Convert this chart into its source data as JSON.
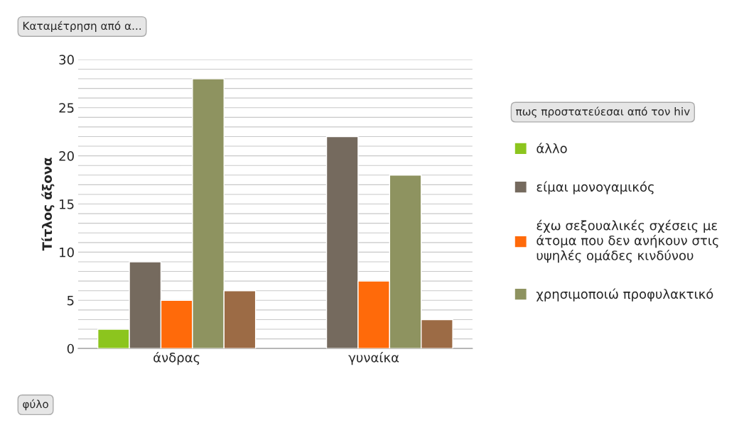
{
  "chart_data": {
    "type": "bar",
    "ylabel": "Τίτλος άξονα",
    "legend_title": "πως προστατεύεσαι από τον hiv",
    "annotations": [
      "Καταμέτρηση από α...",
      "φύλο"
    ],
    "categories": [
      "άνδρας",
      "γυναίκα"
    ],
    "series": [
      {
        "name": "άλλο",
        "color": "#8cc51e",
        "values": [
          2,
          null
        ]
      },
      {
        "name": "είμαι μονογαμικός",
        "color": "#756a5e",
        "values": [
          9,
          22
        ]
      },
      {
        "name": "έχω σεξουαλικές σχέσεις με\nάτομα που δεν ανήκουν στις\nυψηλές ομάδες κινδύνου",
        "color": "#ff6a0a",
        "values": [
          5,
          7
        ]
      },
      {
        "name": "χρησιμοποιώ προφυλακτικό",
        "color": "#8e9360",
        "values": [
          28,
          18
        ]
      },
      {
        "color": "#9c6b45",
        "values": [
          6,
          3
        ]
      }
    ],
    "ylim": [
      0,
      30
    ],
    "yticks": [
      0,
      {
        "value": 1,
        "label": null
      },
      {
        "value": 2,
        "label": null
      },
      {
        "value": 3,
        "label": null
      },
      {
        "value": 4,
        "label": null
      },
      5,
      {
        "value": 6,
        "label": null
      },
      {
        "value": 7,
        "label": null
      },
      {
        "value": 8,
        "label": null
      },
      {
        "value": 9,
        "label": null
      },
      10,
      {
        "value": 11,
        "label": null
      },
      {
        "value": 12,
        "label": null
      },
      {
        "value": 13,
        "label": null
      },
      {
        "value": 14,
        "label": null
      },
      15,
      {
        "value": 16,
        "label": null
      },
      {
        "value": 17,
        "label": null
      },
      {
        "value": 18,
        "label": null
      },
      {
        "value": 19,
        "label": null
      },
      20,
      {
        "value": 21,
        "label": null
      },
      {
        "value": 22,
        "label": null
      },
      {
        "value": 23,
        "label": null
      },
      {
        "value": 24,
        "label": null
      },
      25,
      {
        "value": 26,
        "label": null
      },
      {
        "value": 27,
        "label": null
      },
      {
        "value": 28,
        "label": null
      },
      {
        "value": 29,
        "label": null
      },
      30
    ],
    "grid": "y",
    "legend": "right"
  }
}
